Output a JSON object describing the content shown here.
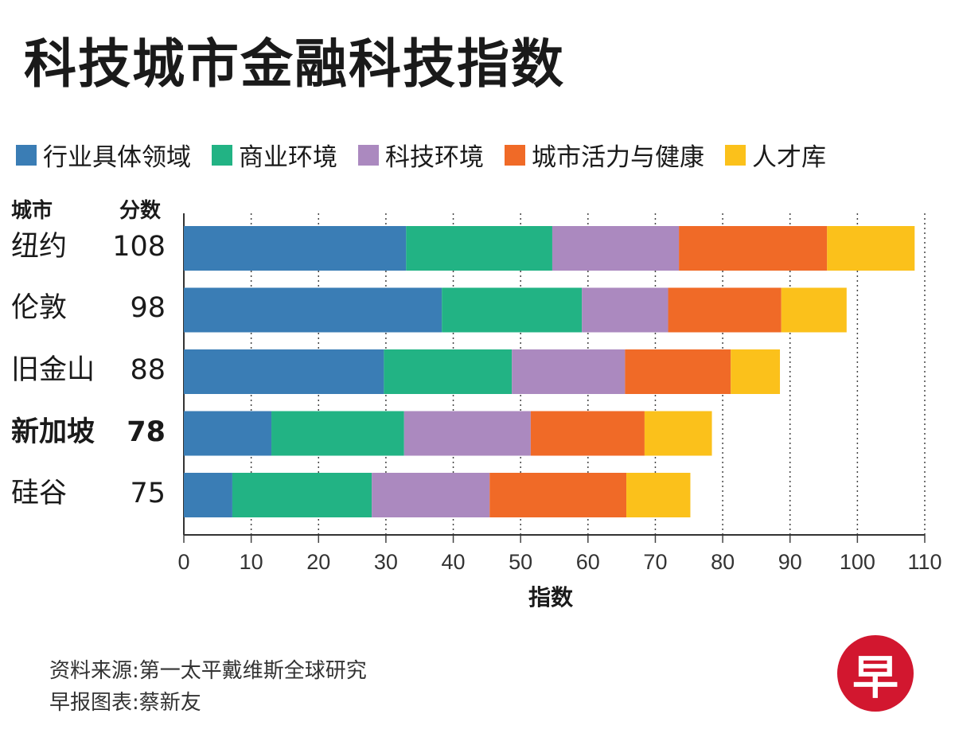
{
  "title": "科技城市金融科技指数",
  "legend": [
    {
      "label": "行业具体领域",
      "color": "#3a7db5"
    },
    {
      "label": "商业环境",
      "color": "#22b384"
    },
    {
      "label": "科技环境",
      "color": "#ab89bf"
    },
    {
      "label": "城市活力与健康",
      "color": "#f06a27"
    },
    {
      "label": "人才库",
      "color": "#fbc11b"
    }
  ],
  "headers": {
    "city": "城市",
    "score": "分数"
  },
  "source": {
    "data_source": "资料来源:第一太平戴维斯全球研究",
    "chart_credit": "早报图表:蔡新友"
  },
  "logo_text": "早",
  "chart_data": {
    "type": "bar",
    "orientation": "horizontal",
    "stacked": true,
    "title": "科技城市金融科技指数",
    "xlabel": "指数",
    "xlim": [
      0,
      110
    ],
    "xticks": [
      "0",
      "10",
      "20",
      "30",
      "40",
      "50",
      "60",
      "70",
      "80",
      "90",
      "100",
      "110"
    ],
    "grid": "vertical dotted",
    "legend_position": "top",
    "categories": [
      "纽约",
      "伦敦",
      "旧金山",
      "新加坡",
      "硅谷"
    ],
    "scores": [
      "108",
      "98",
      "88",
      "78",
      "75"
    ],
    "highlight": "新加坡",
    "series": [
      {
        "name": "行业具体领域",
        "color": "#3a7db5",
        "values": [
          33,
          38.3,
          29.7,
          13,
          7.2
        ]
      },
      {
        "name": "商业环境",
        "color": "#22b384",
        "values": [
          21.7,
          20.8,
          19,
          19.7,
          20.7
        ]
      },
      {
        "name": "科技环境",
        "color": "#ab89bf",
        "values": [
          18.8,
          12.8,
          16.8,
          18.8,
          17.5
        ]
      },
      {
        "name": "城市活力与健康",
        "color": "#f06a27",
        "values": [
          22,
          16.8,
          15.7,
          16.9,
          20.3
        ]
      },
      {
        "name": "人才库",
        "color": "#fbc11b",
        "values": [
          13,
          9.7,
          7.3,
          10,
          9.5
        ]
      }
    ]
  }
}
